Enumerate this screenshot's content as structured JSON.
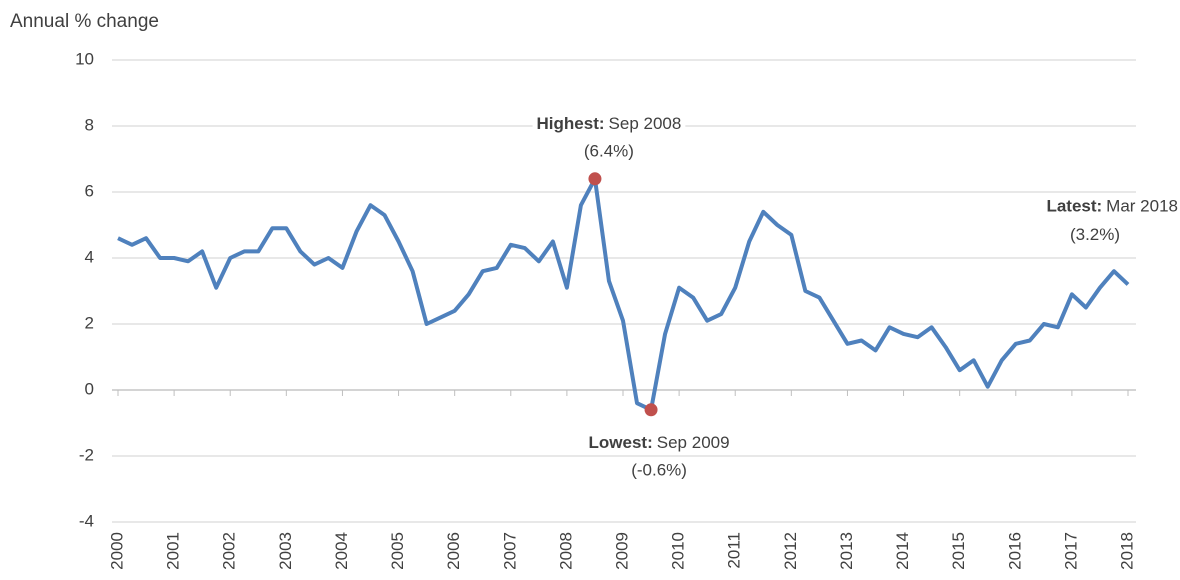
{
  "chart_data": {
    "type": "line",
    "title": "Annual % change",
    "categories": [
      "2000",
      null,
      null,
      null,
      "2001",
      null,
      null,
      null,
      "2002",
      null,
      null,
      null,
      "2003",
      null,
      null,
      null,
      "2004",
      null,
      null,
      null,
      "2005",
      null,
      null,
      null,
      "2006",
      null,
      null,
      null,
      "2007",
      null,
      null,
      null,
      "2008",
      null,
      null,
      null,
      "2009",
      null,
      null,
      null,
      "2010",
      null,
      null,
      null,
      "2011",
      null,
      null,
      null,
      "2012",
      null,
      null,
      null,
      "2013",
      null,
      null,
      null,
      "2014",
      null,
      null,
      null,
      "2015",
      null,
      null,
      null,
      "2016",
      null,
      null,
      null,
      "2017",
      null,
      null,
      null,
      "2018"
    ],
    "series": [
      {
        "color": "#4f81bd",
        "values": [
          4.6,
          4.4,
          4.6,
          4.0,
          4.0,
          3.9,
          4.2,
          3.1,
          4.0,
          4.2,
          4.2,
          4.9,
          4.9,
          4.2,
          3.8,
          4.0,
          3.7,
          4.8,
          5.6,
          5.3,
          4.5,
          3.6,
          2.0,
          2.2,
          2.4,
          2.9,
          3.6,
          3.7,
          4.4,
          4.3,
          3.9,
          4.5,
          3.1,
          5.6,
          6.4,
          3.3,
          2.1,
          -0.4,
          -0.6,
          1.7,
          3.1,
          2.8,
          2.1,
          2.3,
          3.1,
          4.5,
          5.4,
          5.0,
          4.7,
          3.0,
          2.8,
          2.1,
          1.4,
          1.5,
          1.2,
          1.9,
          1.7,
          1.6,
          1.9,
          1.3,
          0.6,
          0.9,
          0.1,
          0.9,
          1.4,
          1.5,
          2.0,
          1.9,
          2.9,
          2.5,
          3.1,
          3.6,
          3.2
        ]
      }
    ],
    "ylim": [
      -4,
      10
    ],
    "yticks": [
      -4,
      -2,
      0,
      2,
      4,
      6,
      8,
      10
    ],
    "grid": true,
    "annotations": [
      {
        "label": "Highest:",
        "date": "Sep 2008",
        "value_label": "(6.4%)",
        "value": 6.4,
        "marker": "#c0504d"
      },
      {
        "label": "Lowest:",
        "date": "Sep 2009",
        "value_label": "(-0.6%)",
        "value": -0.6,
        "marker": "#c0504d"
      },
      {
        "label": "Latest:",
        "date": "Mar 2018",
        "value_label": "(3.2%)",
        "value": 3.2
      }
    ]
  }
}
